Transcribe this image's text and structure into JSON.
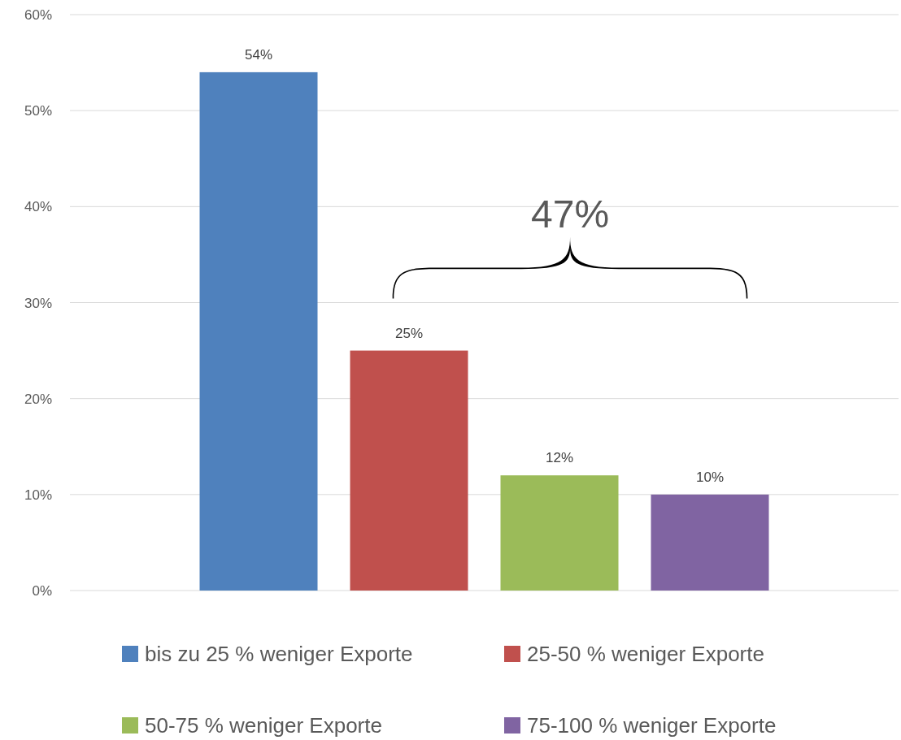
{
  "chart_data": {
    "type": "bar",
    "categories": [
      null
    ],
    "series": [
      {
        "name": "bis zu 25 % weniger Exporte",
        "color": "#4f81bd",
        "values": [
          54
        ],
        "value_labels": [
          "54%"
        ]
      },
      {
        "name": "25-50 % weniger Exporte",
        "color": "#c0504d",
        "values": [
          25
        ],
        "value_labels": [
          "25%"
        ]
      },
      {
        "name": "50-75 % weniger Exporte",
        "color": "#9bbb59",
        "values": [
          12
        ],
        "value_labels": [
          "12%"
        ]
      },
      {
        "name": "75-100 % weniger Exporte",
        "color": "#8064a2",
        "values": [
          10
        ],
        "value_labels": [
          "10%"
        ]
      }
    ],
    "ylim": [
      0,
      60
    ],
    "yticks": [
      {
        "value": 0,
        "label": "0%"
      },
      {
        "value": 10,
        "label": "10%"
      },
      {
        "value": 20,
        "label": "20%"
      },
      {
        "value": 30,
        "label": "30%"
      },
      {
        "value": 40,
        "label": "40%"
      },
      {
        "value": 50,
        "label": "50%"
      },
      {
        "value": 60,
        "label": "60%"
      }
    ],
    "grid": "y",
    "legend": "bottom",
    "annotations": [
      "47%"
    ]
  }
}
